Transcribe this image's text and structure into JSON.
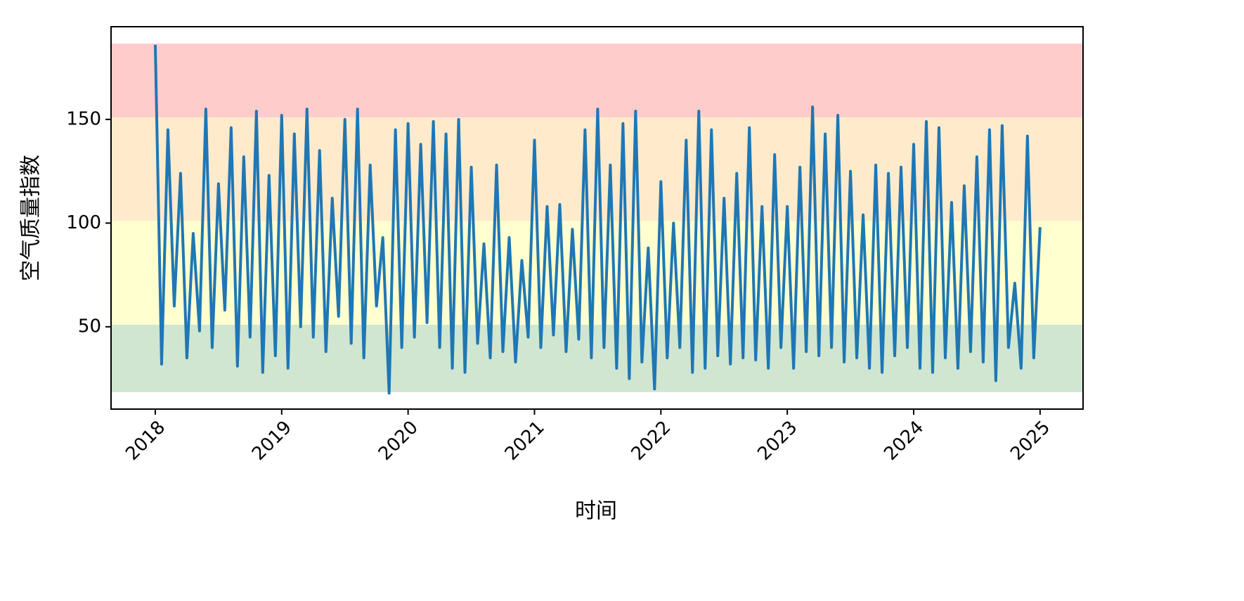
{
  "chart_data": {
    "type": "line",
    "xlabel": "时间",
    "ylabel": "空气质量指数",
    "x": [
      2018,
      2018.05,
      2018.1,
      2018.15,
      2018.2,
      2018.25,
      2018.3,
      2018.35,
      2018.4,
      2018.45,
      2018.5,
      2018.55,
      2018.6,
      2018.65,
      2018.7,
      2018.75,
      2018.8,
      2018.85,
      2018.9,
      2018.95,
      2019,
      2019.05,
      2019.1,
      2019.15,
      2019.2,
      2019.25,
      2019.3,
      2019.35,
      2019.4,
      2019.45,
      2019.5,
      2019.55,
      2019.6,
      2019.65,
      2019.7,
      2019.75,
      2019.8,
      2019.85,
      2019.9,
      2019.95,
      2020,
      2020.05,
      2020.1,
      2020.15,
      2020.2,
      2020.25,
      2020.3,
      2020.35,
      2020.4,
      2020.45,
      2020.5,
      2020.55,
      2020.6,
      2020.65,
      2020.7,
      2020.75,
      2020.8,
      2020.85,
      2020.9,
      2020.95,
      2021,
      2021.05,
      2021.1,
      2021.15,
      2021.2,
      2021.25,
      2021.3,
      2021.35,
      2021.4,
      2021.45,
      2021.5,
      2021.55,
      2021.6,
      2021.65,
      2021.7,
      2021.75,
      2021.8,
      2021.85,
      2021.9,
      2021.95,
      2022,
      2022.05,
      2022.1,
      2022.15,
      2022.2,
      2022.25,
      2022.3,
      2022.35,
      2022.4,
      2022.45,
      2022.5,
      2022.55,
      2022.6,
      2022.65,
      2022.7,
      2022.75,
      2022.8,
      2022.85,
      2022.9,
      2022.95,
      2023,
      2023.05,
      2023.1,
      2023.15,
      2023.2,
      2023.25,
      2023.3,
      2023.35,
      2023.4,
      2023.45,
      2023.5,
      2023.55,
      2023.6,
      2023.65,
      2023.7,
      2023.75,
      2023.8,
      2023.85,
      2023.9,
      2023.95,
      2024,
      2024.05,
      2024.1,
      2024.15,
      2024.2,
      2024.25,
      2024.3,
      2024.35,
      2024.4,
      2024.45,
      2024.5,
      2024.55,
      2024.6,
      2024.65,
      2024.7,
      2024.75,
      2024.8,
      2024.85,
      2024.9,
      2024.95,
      2025
    ],
    "series": [
      {
        "color": "#1f77b4",
        "values": [
          186,
          32,
          145,
          60,
          124,
          35,
          95,
          48,
          155,
          40,
          119,
          58,
          146,
          31,
          132,
          45,
          154,
          28,
          123,
          36,
          152,
          30,
          143,
          50,
          155,
          45,
          135,
          38,
          112,
          55,
          150,
          42,
          155,
          35,
          128,
          60,
          93,
          18,
          145,
          40,
          148,
          45,
          138,
          52,
          149,
          40,
          143,
          30,
          150,
          28,
          127,
          42,
          90,
          35,
          128,
          38,
          93,
          33,
          82,
          45,
          140,
          40,
          108,
          46,
          109,
          38,
          97,
          44,
          145,
          35,
          155,
          40,
          128,
          30,
          148,
          25,
          154,
          33,
          88,
          20,
          120,
          35,
          100,
          40,
          140,
          28,
          154,
          30,
          145,
          36,
          112,
          32,
          124,
          35,
          146,
          34,
          108,
          30,
          133,
          40,
          108,
          30,
          127,
          38,
          156,
          36,
          143,
          40,
          152,
          33,
          125,
          35,
          104,
          30,
          128,
          28,
          124,
          36,
          127,
          40,
          138,
          30,
          149,
          28,
          146,
          35,
          110,
          30,
          118,
          38,
          132,
          33,
          145,
          24,
          147,
          40,
          71,
          30,
          142,
          35,
          98
        ]
      }
    ],
    "bands": [
      {
        "from": 18.5,
        "to": 51,
        "color": "#d0e6d0"
      },
      {
        "from": 51,
        "to": 101,
        "color": "#ffffd0"
      },
      {
        "from": 101,
        "to": 151,
        "color": "#ffebcc"
      },
      {
        "from": 151,
        "to": 186.6,
        "color": "#ffcccc"
      }
    ],
    "xlim": [
      2017.65,
      2025.34
    ],
    "xticks": [
      2018,
      2019,
      2020,
      2021,
      2022,
      2023,
      2024,
      2025
    ],
    "ylim": [
      10.3,
      194.7
    ],
    "yticks": [
      50,
      100,
      150
    ]
  }
}
